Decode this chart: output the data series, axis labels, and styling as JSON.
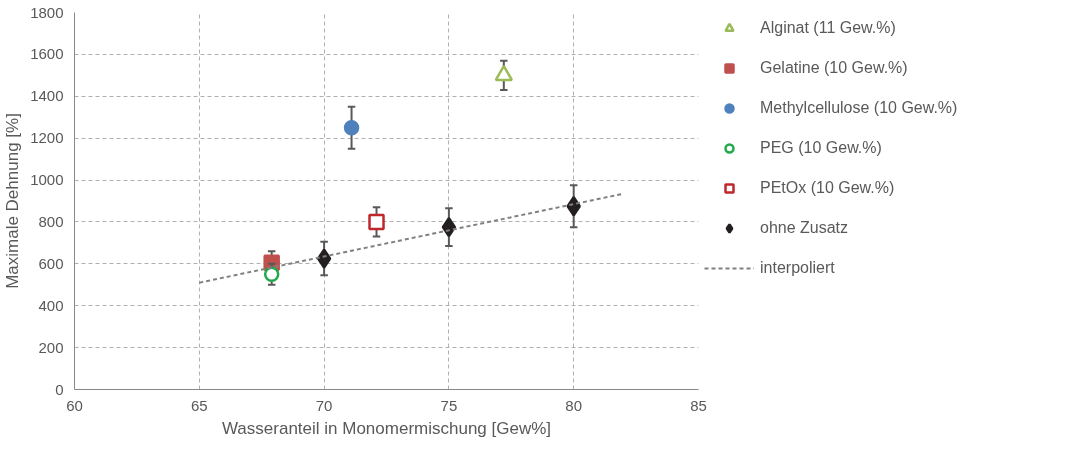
{
  "chart_data": {
    "type": "scatter",
    "xlabel": "Wasseranteil in Monomermischung [Gew%]",
    "ylabel": "Maximale Dehnung [%]",
    "xlim": [
      60,
      85
    ],
    "xticks": [
      60,
      65,
      70,
      75,
      80,
      85
    ],
    "ylim": [
      0,
      1800
    ],
    "yticks": [
      0,
      200,
      400,
      600,
      800,
      1000,
      1200,
      1400,
      1600,
      1800
    ],
    "grid": true,
    "legend": "right",
    "series": [
      {
        "name": "Alginat (11 Gew.%)",
        "color": "#9bbb59",
        "marker": "triangle",
        "x": [
          77.2
        ],
        "values": [
          1500
        ],
        "errors": [
          70
        ]
      },
      {
        "name": "Gelatine (10 Gew.%)",
        "color": "#c0504d",
        "marker": "square",
        "x": [
          67.9
        ],
        "values": [
          605
        ],
        "errors": [
          55
        ]
      },
      {
        "name": "Methylcellulose (10 Gew.%)",
        "color": "#4f81bd",
        "marker": "circle",
        "x": [
          71.1
        ],
        "values": [
          1250
        ],
        "errors": [
          100
        ]
      },
      {
        "name": "PEG (10 Gew.%)",
        "color": "#22a94b",
        "marker": "circle",
        "x": [
          67.9
        ],
        "values": [
          550
        ],
        "errors": [
          50
        ]
      },
      {
        "name": "PEtOx (10 Gew.%)",
        "color": "#c0272d",
        "marker": "square",
        "x": [
          72.1
        ],
        "values": [
          800
        ],
        "errors": [
          70
        ]
      },
      {
        "name": "ohne Zusatz",
        "color": "#231f20",
        "marker": "diamond",
        "x": [
          70,
          75,
          80
        ],
        "values": [
          625,
          775,
          875
        ],
        "errors": [
          80,
          90,
          100
        ]
      },
      {
        "name": "interpoliert",
        "type": "line",
        "line_style": "dashed",
        "color": "#808080",
        "x": [
          65,
          82
        ],
        "values": [
          510,
          935
        ]
      }
    ]
  }
}
